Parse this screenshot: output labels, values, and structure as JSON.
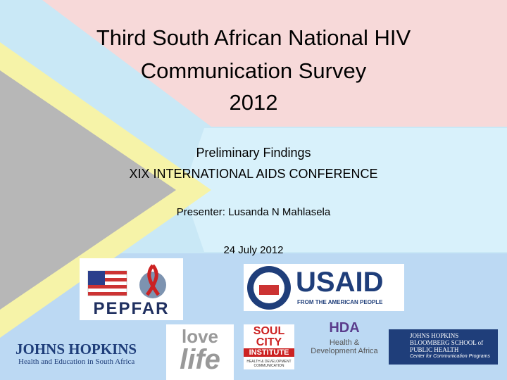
{
  "header": {
    "title": [
      "Third South African National HIV",
      "Communication Survey",
      "2012"
    ],
    "subtitle": "Preliminary Findings",
    "conference": "XIX INTERNATIONAL AIDS CONFERENCE",
    "presenter": "Presenter: Lusanda N Mahlasela",
    "date": "24 July 2012"
  },
  "logos": {
    "pepfar": "PEPFAR",
    "usaid": {
      "name": "USAID",
      "tagline": "FROM THE AMERICAN PEOPLE"
    },
    "jhhesa": {
      "name": "JOHNS HOPKINS",
      "tagline": "Health and Education in South Africa"
    },
    "lovelife": [
      "love",
      "life"
    ],
    "soulcity": [
      "SOUL CITY",
      "INSTITUTE",
      "HEALTH & DEVELOPMENT COMMUNICATION"
    ],
    "hda": [
      "HDA",
      "Health & Development Africa"
    ],
    "ccp": [
      "JOHNS HOPKINS BLOOMBERG SCHOOL of PUBLIC HEALTH",
      "Center for Communication Programs"
    ]
  }
}
